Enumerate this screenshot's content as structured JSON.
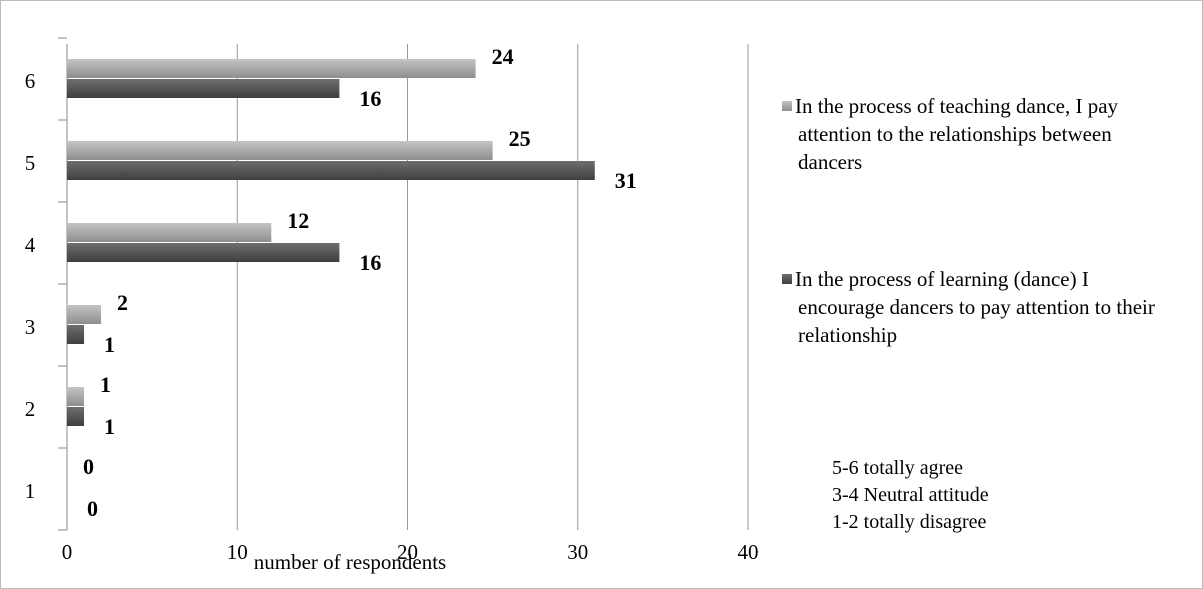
{
  "chart_data": {
    "type": "bar",
    "orientation": "horizontal",
    "categories": [
      "1",
      "2",
      "3",
      "4",
      "5",
      "6"
    ],
    "series": [
      {
        "name": "In the process of teaching dance, I pay attention to the relationships between dancers",
        "color": "#a6a6a6",
        "values": [
          0,
          1,
          2,
          12,
          25,
          24
        ]
      },
      {
        "name": "In the process of learning (dance) I encourage dancers to pay attention to their relationship",
        "color": "#555555",
        "values": [
          0,
          1,
          1,
          16,
          31,
          16
        ]
      }
    ],
    "xlabel": "number of respondents",
    "xlim": [
      0,
      40
    ],
    "xticks": [
      0,
      10,
      20,
      30,
      40
    ],
    "grid": true,
    "annotations": [
      "5-6 totally agree",
      "3-4 Neutral attitude",
      "1-2 totally disagree"
    ]
  }
}
